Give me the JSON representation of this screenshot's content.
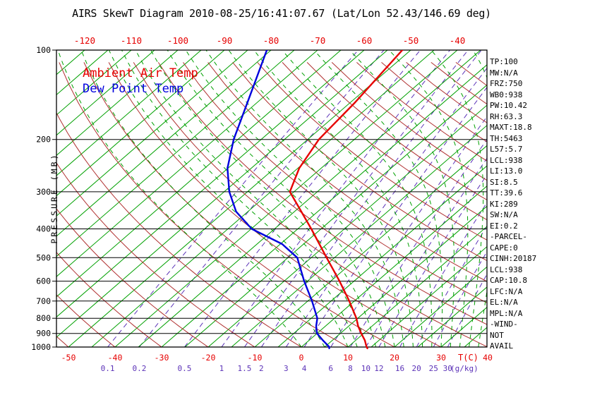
{
  "title": "AIRS SkewT Diagram 2010-08-25/16:41:07.67 (Lat/Lon 52.43/146.69 deg)",
  "legend": {
    "ambient": "Ambient Air Temp",
    "dewpoint": "Dew Point Temp"
  },
  "axes": {
    "pressure_label": "PRESSURE (MB)",
    "pressure_ticks": [
      100,
      200,
      300,
      400,
      500,
      600,
      700,
      800,
      900,
      1000
    ],
    "top_temp_ticks": [
      -120,
      -110,
      -100,
      -90,
      -80,
      -70,
      -60,
      -50,
      -40
    ],
    "bottom_temp_ticks": [
      -50,
      -40,
      -30,
      -20,
      -10,
      0,
      10,
      20,
      30,
      40
    ],
    "temp_unit_label": "T(C)",
    "mixing_ratio_ticks": [
      0.1,
      0.2,
      0.5,
      1,
      1.5,
      2,
      3,
      4,
      6,
      8,
      10,
      12,
      16,
      20,
      25,
      30
    ],
    "mixing_unit_label": "(g/kg)"
  },
  "stats": [
    "TP:100",
    "MW:N/A",
    "FRZ:750",
    "WB0:938",
    "PW:10.42",
    "RH:63.3",
    "MAXT:18.8",
    "TH:5463",
    "L57:5.7",
    "LCL:938",
    "LI:13.0",
    "SI:8.5",
    "TT:39.6",
    "KI:289",
    "SW:N/A",
    "EI:0.2",
    "-PARCEL-",
    "CAPE:0",
    "CINH:20187",
    "LCL:938",
    "CAP:10.8",
    "LFC:N/A",
    "EL:N/A",
    "MPL:N/A",
    "-WIND-",
    "NOT",
    "AVAIL"
  ],
  "colors": {
    "temperature": "#e60000",
    "dewpoint": "#0000dd",
    "isotherm": "#00a000",
    "dry_adiabat": "#b03030",
    "mixing_ratio": "#5c33b8",
    "moist_adiabat": "#00a000",
    "grid": "#000000",
    "top_labels": "#e60000",
    "bottom_temp_labels": "#e60000"
  },
  "chart_data": {
    "type": "line",
    "subtype": "skewt-log-p",
    "title": "AIRS SkewT Diagram 2010-08-25/16:41:07.67 (Lat/Lon 52.43/146.69 deg)",
    "xlabel": "T(C)",
    "ylabel": "PRESSURE (MB)",
    "pressure_range_mb": [
      100,
      1010
    ],
    "temp_axis_range_c": [
      -120,
      40
    ],
    "grid": {
      "isotherms_c": {
        "min": -120,
        "max": 40,
        "step": 5
      },
      "dry_adiabats_theta_c": {
        "min": -60,
        "max": 170,
        "step": 10
      },
      "moist_adiabats_thetaw_c": [
        0,
        5,
        10,
        12,
        14,
        16,
        18,
        20,
        22,
        24,
        26,
        28,
        30,
        32,
        34,
        36,
        38,
        40
      ],
      "mixing_ratio_lines_gkg": [
        0.1,
        0.2,
        0.5,
        1,
        1.5,
        2,
        3,
        4,
        6,
        8,
        10,
        12,
        16,
        20,
        25,
        30
      ]
    },
    "series": [
      {
        "name": "Ambient Air Temp",
        "units": "pressure_mb, temp_c",
        "points": [
          [
            1010,
            14.5
          ],
          [
            1000,
            14.0
          ],
          [
            950,
            12.0
          ],
          [
            900,
            9.5
          ],
          [
            850,
            7.0
          ],
          [
            800,
            4.7
          ],
          [
            700,
            -1.1
          ],
          [
            600,
            -8.1
          ],
          [
            500,
            -16.7
          ],
          [
            400,
            -27.1
          ],
          [
            300,
            -40.9
          ],
          [
            250,
            -44.7
          ],
          [
            200,
            -47.6
          ],
          [
            150,
            -49.0
          ],
          [
            100,
            -51.8
          ]
        ]
      },
      {
        "name": "Dew Point Temp",
        "units": "pressure_mb, temp_c",
        "points": [
          [
            1010,
            6.3
          ],
          [
            1000,
            6.0
          ],
          [
            950,
            3.0
          ],
          [
            900,
            0.0
          ],
          [
            850,
            -2.0
          ],
          [
            800,
            -3.7
          ],
          [
            700,
            -9.1
          ],
          [
            600,
            -15.7
          ],
          [
            500,
            -23.0
          ],
          [
            450,
            -29.6
          ],
          [
            400,
            -39.9
          ],
          [
            350,
            -47.5
          ],
          [
            300,
            -53.9
          ],
          [
            250,
            -60.1
          ],
          [
            200,
            -65.9
          ],
          [
            150,
            -72.1
          ],
          [
            100,
            -80.9
          ]
        ]
      }
    ]
  }
}
